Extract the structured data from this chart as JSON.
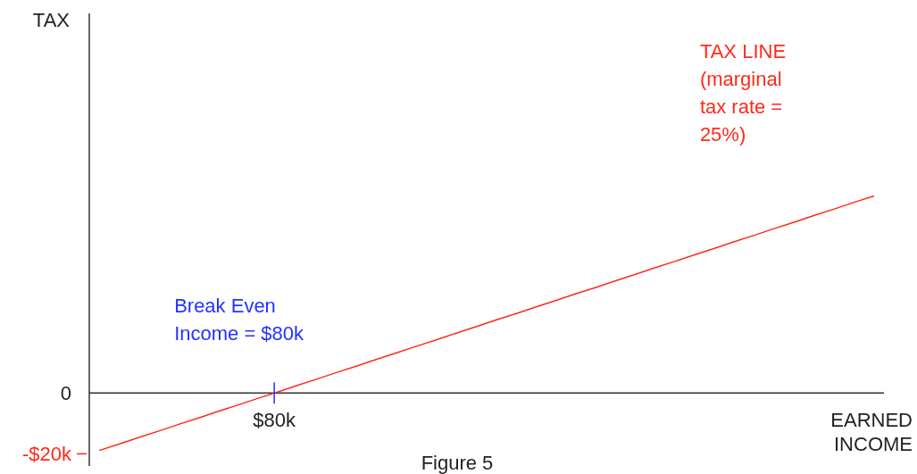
{
  "chart_data": {
    "type": "line",
    "ylabel": "TAX",
    "xlabel": "EARNED INCOME",
    "categories": [
      null,
      null,
      null,
      null,
      null,
      null,
      null,
      null,
      null,
      null,
      null,
      null,
      null,
      null,
      null,
      null,
      null,
      null,
      null,
      null,
      null,
      null,
      null,
      null,
      null,
      null,
      null,
      null,
      null,
      null,
      null,
      null,
      null,
      null,
      null,
      null,
      null,
      null,
      null,
      null
    ],
    "ref_lines": [
      {
        "axis": "y",
        "value": 0
      }
    ],
    "ylim": [
      -24,
      125
    ],
    "yticks": [
      {
        "value": -20,
        "label": "-$20k"
      },
      {
        "value": 0,
        "label": "0"
      }
    ],
    "series": [
      {
        "name": "TAX LINE (marginal tax rate = 25%)",
        "color": "#ff2a1a",
        "values": [
          -18.9,
          -16.8,
          -14.6,
          -12.5,
          -10.3,
          -8.2,
          -6.0,
          -3.9,
          -1.7,
          0.4,
          2.6,
          4.7,
          6.9,
          9.0,
          11.2,
          13.3,
          15.5,
          17.6,
          19.8,
          21.9,
          24.1,
          26.2,
          28.4,
          30.5,
          32.7,
          34.8,
          37.0,
          39.1,
          41.3,
          43.4,
          45.6,
          47.7,
          49.9,
          52.0,
          54.2,
          56.3,
          58.5,
          60.6,
          62.8,
          64.9
        ]
      }
    ],
    "annotations": [
      "Break Even Income = $80k",
      "$80k",
      "Figure 5"
    ],
    "grid": false,
    "legend": false
  }
}
